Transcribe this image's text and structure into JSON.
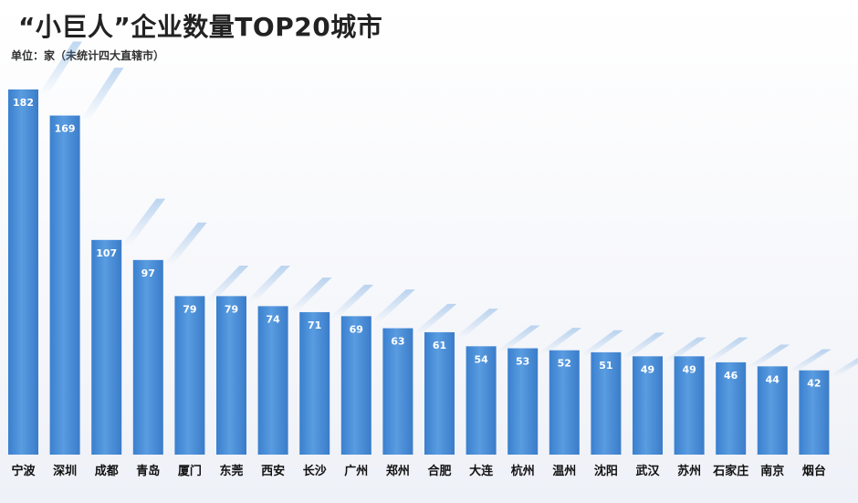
{
  "title": "“小巨人”企业数量TOP20城市",
  "subtitle": "单位：家（未统计四大直辖市）",
  "colors": {
    "bar": "#4a90d9",
    "bar_dark": "#3577c4",
    "bar_light": "#7eb3ea"
  },
  "chart_data": {
    "type": "bar",
    "title": "“小巨人”企业数量TOP20城市",
    "subtitle": "单位：家（未统计四大直辖市）",
    "xlabel": "",
    "ylabel": "",
    "ylim": [
      0,
      182
    ],
    "grid": false,
    "categories": [
      "宁波",
      "深圳",
      "成都",
      "青岛",
      "厦门",
      "东莞",
      "西安",
      "长沙",
      "广州",
      "郑州",
      "合肥",
      "大连",
      "杭州",
      "温州",
      "沈阳",
      "武汉",
      "苏州",
      "石家庄",
      "南京",
      "烟台"
    ],
    "values": [
      182,
      169,
      107,
      97,
      79,
      79,
      74,
      71,
      69,
      63,
      61,
      54,
      53,
      52,
      51,
      49,
      49,
      46,
      44,
      42
    ],
    "data_labels": [
      "182",
      "169",
      "107",
      "97",
      "79",
      "79",
      "74",
      "71",
      "69",
      "63",
      "61",
      "54",
      "53",
      "52",
      "51",
      "49",
      "49",
      "46",
      "44",
      "42"
    ]
  }
}
